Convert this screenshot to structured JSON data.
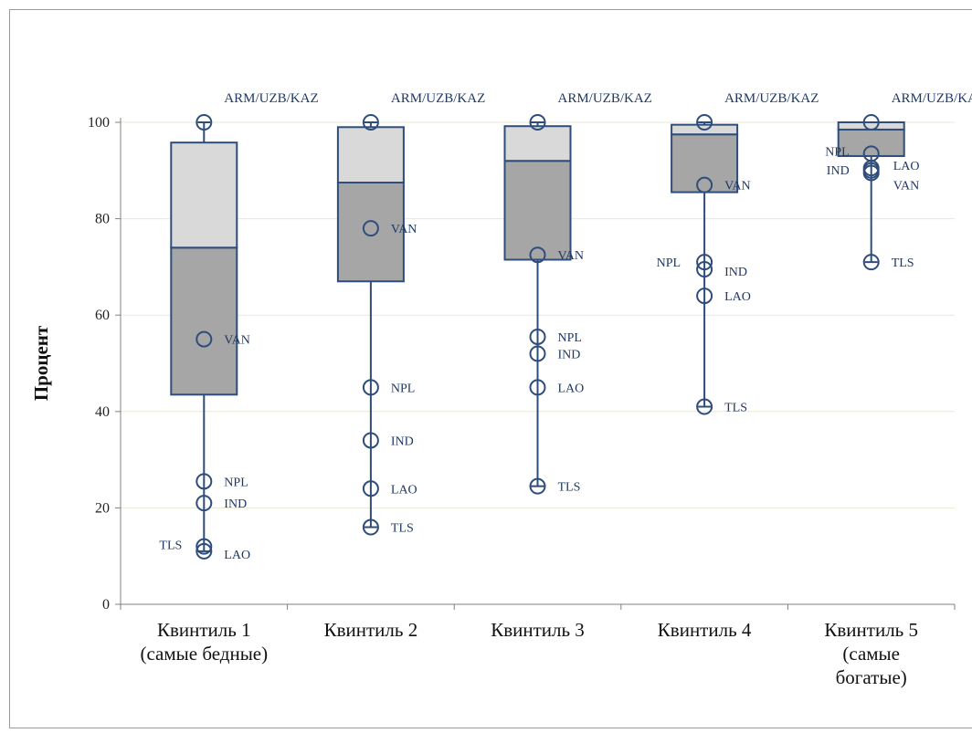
{
  "chart_data": {
    "type": "box",
    "ylabel": "Процент",
    "xlabel": "",
    "ylim": [
      0,
      100
    ],
    "yticks": [
      0,
      20,
      40,
      60,
      80,
      100
    ],
    "grid": true,
    "categories": [
      [
        "Квинтиль 1",
        "(самые бедные)"
      ],
      [
        "Квинтиль 2"
      ],
      [
        "Квинтиль 3"
      ],
      [
        "Квинтиль 4"
      ],
      [
        "Квинтиль 5",
        "(самые",
        "богатые)"
      ]
    ],
    "boxes": [
      {
        "q1": 43.5,
        "median": 74,
        "q3": 95.8,
        "whisker_low": 11,
        "whisker_high": 100
      },
      {
        "q1": 67,
        "median": 87.5,
        "q3": 99,
        "whisker_low": 16,
        "whisker_high": 100
      },
      {
        "q1": 71.5,
        "median": 92,
        "q3": 99.2,
        "whisker_low": 24.5,
        "whisker_high": 100
      },
      {
        "q1": 85.5,
        "median": 97.5,
        "q3": 99.5,
        "whisker_low": 41,
        "whisker_high": 100
      },
      {
        "q1": 93,
        "median": 98.5,
        "q3": 100,
        "whisker_low": 71,
        "whisker_high": 100
      }
    ],
    "points": [
      [
        {
          "label": "ARM/UZB/KAZ",
          "value": 100
        },
        {
          "label": "VAN",
          "value": 55
        },
        {
          "label": "NPL",
          "value": 25.5
        },
        {
          "label": "IND",
          "value": 21
        },
        {
          "label": "TLS",
          "value": 12
        },
        {
          "label": "LAO",
          "value": 11
        }
      ],
      [
        {
          "label": "ARM/UZB/KAZ",
          "value": 100
        },
        {
          "label": "VAN",
          "value": 78
        },
        {
          "label": "NPL",
          "value": 45
        },
        {
          "label": "IND",
          "value": 34
        },
        {
          "label": "LAO",
          "value": 24
        },
        {
          "label": "TLS",
          "value": 16
        }
      ],
      [
        {
          "label": "ARM/UZB/KAZ",
          "value": 100
        },
        {
          "label": "VAN",
          "value": 72.5
        },
        {
          "label": "NPL",
          "value": 55.5
        },
        {
          "label": "IND",
          "value": 52
        },
        {
          "label": "LAO",
          "value": 45
        },
        {
          "label": "TLS",
          "value": 24.5
        }
      ],
      [
        {
          "label": "ARM/UZB/KAZ",
          "value": 100
        },
        {
          "label": "VAN",
          "value": 87
        },
        {
          "label": "NPL",
          "value": 71
        },
        {
          "label": "IND",
          "value": 69.5
        },
        {
          "label": "LAO",
          "value": 64
        },
        {
          "label": "TLS",
          "value": 41
        }
      ],
      [
        {
          "label": "ARM/UZB/KAZ",
          "value": 100
        },
        {
          "label": "NPL",
          "value": 93.5
        },
        {
          "label": "LAO",
          "value": 90.5
        },
        {
          "label": "IND",
          "value": 90
        },
        {
          "label": "VAN",
          "value": 89.5
        },
        {
          "label": "TLS",
          "value": 71
        }
      ]
    ],
    "colors": {
      "box_lower": "#a6a6a6",
      "box_upper": "#d9d9d9",
      "outline": "#2e4d7b",
      "grid": "#ebe7d3",
      "axis": "#808080"
    }
  }
}
